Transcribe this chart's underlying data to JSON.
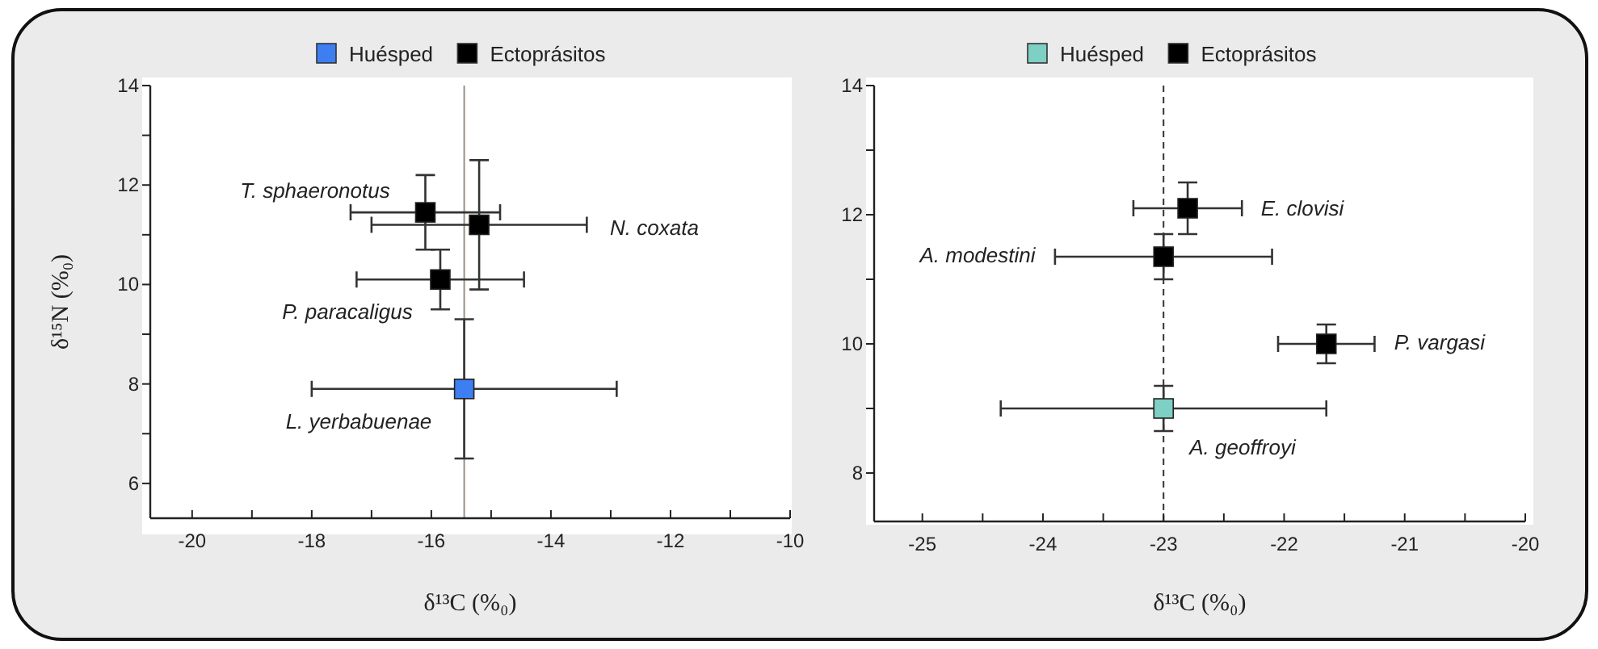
{
  "chart_data": [
    {
      "type": "scatter",
      "xlabel": "δ¹³C (%₀)",
      "ylabel": "δ¹⁵N (%₀)",
      "legend": "top",
      "marker": "square",
      "xlim": [
        -20.7,
        -10
      ],
      "xticks": [
        -20,
        {
          "value": -19,
          "label": null
        },
        -18,
        {
          "value": -17,
          "label": null
        },
        -16,
        {
          "value": -15,
          "label": null
        },
        -14,
        {
          "value": -13,
          "label": null
        },
        -12,
        {
          "value": -11,
          "label": null
        },
        -10
      ],
      "ylim": [
        5.3,
        14
      ],
      "yticks": [
        6,
        {
          "value": 7,
          "label": null
        },
        8,
        {
          "value": 9,
          "label": null
        },
        10,
        {
          "value": 11,
          "label": null
        },
        12,
        {
          "value": 13,
          "label": null
        },
        14
      ],
      "series": [
        {
          "name": "Huésped",
          "color": "#3d7ef0",
          "x": [
            -15.45
          ],
          "values": [
            7.9
          ],
          "errors": [
            1.4
          ],
          "xerrors": [
            2.55
          ]
        },
        {
          "name": "Ectoprásitos",
          "color": "#000000",
          "x": [
            -16.1,
            -15.2,
            -15.85
          ],
          "values": [
            11.45,
            11.2,
            10.1
          ],
          "errors": [
            0.75,
            1.3,
            0.6
          ],
          "xerrors": [
            1.25,
            1.8,
            1.4
          ]
        }
      ],
      "ref_lines": [
        {
          "axis": "x",
          "value": -15.45,
          "line_style": "solid",
          "color": "#9a8f86"
        }
      ],
      "annotations": [
        "T. sphaeronotus",
        "N. coxata",
        "P. paracaligus",
        "L. yerbabuenae"
      ]
    },
    {
      "type": "scatter",
      "xlabel": "δ¹³C (%₀)",
      "ylabel": null,
      "legend": "top",
      "marker": "square",
      "xlim": [
        -25.4,
        -20
      ],
      "xticks": [
        -25,
        {
          "value": -24.5,
          "label": null
        },
        -24,
        {
          "value": -23.5,
          "label": null
        },
        -23,
        {
          "value": -22.5,
          "label": null
        },
        -22,
        {
          "value": -21.5,
          "label": null
        },
        -21,
        {
          "value": -20.5,
          "label": null
        },
        -20
      ],
      "ylim": [
        7.25,
        14
      ],
      "yticks": [
        8,
        {
          "value": 9,
          "label": null
        },
        10,
        {
          "value": 11,
          "label": null
        },
        12,
        {
          "value": 13,
          "label": null
        },
        14
      ],
      "series": [
        {
          "name": "Huésped",
          "color": "#7ecfc4",
          "x": [
            -23.0
          ],
          "values": [
            9.0
          ],
          "errors": [
            0.35
          ],
          "xerrors": [
            1.35
          ]
        },
        {
          "name": "Ectoprásitos",
          "color": "#000000",
          "x": [
            -22.8,
            -23.0,
            -21.65
          ],
          "values": [
            12.1,
            11.35,
            10.0
          ],
          "errors": [
            0.4,
            0.35,
            0.3
          ],
          "xerrors": [
            0.45,
            0.9,
            0.4
          ]
        }
      ],
      "ref_lines": [
        {
          "axis": "x",
          "value": -23.0,
          "line_style": "dashed",
          "color": "#333333"
        }
      ],
      "annotations": [
        "E. clovisi",
        "A. modestini",
        "P. vargasi",
        "A. geoffroyi"
      ]
    }
  ]
}
